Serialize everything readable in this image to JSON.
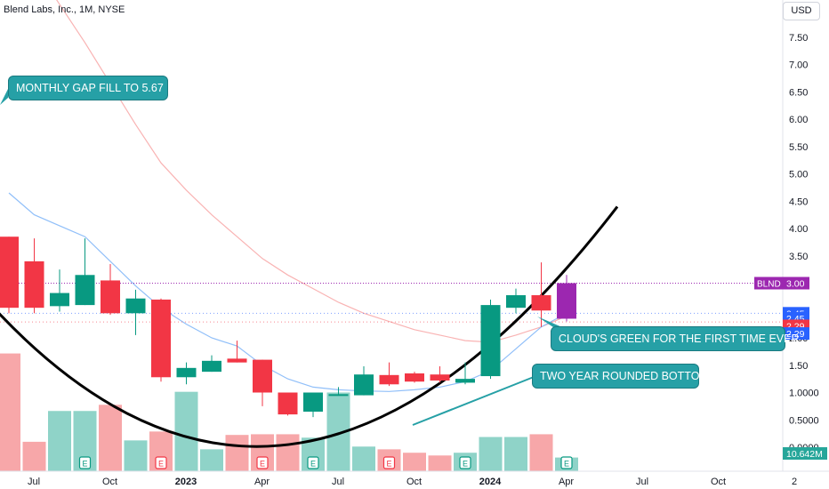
{
  "header": {
    "title": "Blend Labs, Inc., 1M, NYSE",
    "currency_button": "USD"
  },
  "annotations": {
    "gap_fill": "MONTHLY GAP FILL TO 5.67",
    "cloud": "CLOUD'S GREEN FOR THE FIRST TIME EVER",
    "bottom": "TWO YEAR ROUNDED BOTTOM"
  },
  "colors": {
    "up": "#089981",
    "down": "#f23645",
    "current": "#9c27b0",
    "vol_up": "#8fd3c8",
    "vol_down": "#f7a7a9",
    "ema_fast": "#90bff9",
    "ema_slow": "#f9b3b3",
    "curve": "#000000"
  },
  "chart_data": {
    "type": "candlestick",
    "symbol": "BLND",
    "exchange": "NYSE",
    "interval": "1M",
    "ylim": [
      0,
      8
    ],
    "y_ticks": [
      "7.50",
      "7.00",
      "6.50",
      "6.00",
      "5.50",
      "5.00",
      "4.50",
      "4.00",
      "3.50",
      "3.00",
      "2.50",
      "2.00",
      "1.50",
      "1.0000",
      "0.5000",
      "0.0000"
    ],
    "x_ticks": [
      {
        "label": "Jul",
        "month": 0,
        "bold": false
      },
      {
        "label": "Oct",
        "month": 3,
        "bold": false
      },
      {
        "label": "2023",
        "month": 6,
        "bold": true
      },
      {
        "label": "Apr",
        "month": 9,
        "bold": false
      },
      {
        "label": "Jul",
        "month": 12,
        "bold": false
      },
      {
        "label": "Oct",
        "month": 15,
        "bold": false
      },
      {
        "label": "2024",
        "month": 18,
        "bold": true
      },
      {
        "label": "Apr",
        "month": 21,
        "bold": false
      },
      {
        "label": "Jul",
        "month": 24,
        "bold": false
      },
      {
        "label": "Oct",
        "month": 27,
        "bold": false
      },
      {
        "label": "2",
        "month": 30,
        "bold": false
      }
    ],
    "candles": [
      {
        "o": 3.85,
        "h": 3.85,
        "l": 2.45,
        "c": 2.55,
        "vol": 1.72,
        "earnings": false
      },
      {
        "o": 3.4,
        "h": 3.82,
        "l": 2.45,
        "c": 2.55,
        "vol": 0.43,
        "earnings": false
      },
      {
        "o": 2.58,
        "h": 3.25,
        "l": 2.48,
        "c": 2.82,
        "vol": 0.88,
        "earnings": false
      },
      {
        "o": 2.6,
        "h": 3.82,
        "l": 2.6,
        "c": 3.15,
        "vol": 0.88,
        "earnings": true
      },
      {
        "o": 3.05,
        "h": 3.35,
        "l": 2.42,
        "c": 2.45,
        "vol": 0.97,
        "earnings": false
      },
      {
        "o": 2.45,
        "h": 2.88,
        "l": 2.05,
        "c": 2.72,
        "vol": 0.45,
        "earnings": false
      },
      {
        "o": 2.7,
        "h": 2.72,
        "l": 1.2,
        "c": 1.28,
        "vol": 0.58,
        "earnings": true
      },
      {
        "o": 1.28,
        "h": 1.55,
        "l": 1.15,
        "c": 1.45,
        "vol": 1.16,
        "earnings": false
      },
      {
        "o": 1.38,
        "h": 1.68,
        "l": 1.38,
        "c": 1.58,
        "vol": 0.32,
        "earnings": false
      },
      {
        "o": 1.62,
        "h": 1.95,
        "l": 1.55,
        "c": 1.55,
        "vol": 0.53,
        "earnings": false
      },
      {
        "o": 1.6,
        "h": 1.6,
        "l": 0.75,
        "c": 1.0,
        "vol": 0.54,
        "earnings": true
      },
      {
        "o": 1.0,
        "h": 1.0,
        "l": 0.58,
        "c": 0.6,
        "vol": 0.54,
        "earnings": false
      },
      {
        "o": 0.65,
        "h": 1.0,
        "l": 0.55,
        "c": 1.0,
        "vol": 0.49,
        "earnings": true
      },
      {
        "o": 0.95,
        "h": 1.1,
        "l": 0.95,
        "c": 0.97,
        "vol": 1.15,
        "earnings": false
      },
      {
        "o": 0.95,
        "h": 1.48,
        "l": 0.95,
        "c": 1.33,
        "vol": 0.36,
        "earnings": false
      },
      {
        "o": 1.32,
        "h": 1.55,
        "l": 1.12,
        "c": 1.15,
        "vol": 0.32,
        "earnings": true
      },
      {
        "o": 1.35,
        "h": 1.38,
        "l": 1.18,
        "c": 1.2,
        "vol": 0.27,
        "earnings": false
      },
      {
        "o": 1.33,
        "h": 1.48,
        "l": 1.18,
        "c": 1.22,
        "vol": 0.23,
        "earnings": false
      },
      {
        "o": 1.18,
        "h": 1.55,
        "l": 1.15,
        "c": 1.25,
        "vol": 0.27,
        "earnings": true
      },
      {
        "o": 1.3,
        "h": 2.7,
        "l": 1.25,
        "c": 2.6,
        "vol": 0.5,
        "earnings": false
      },
      {
        "o": 2.55,
        "h": 2.9,
        "l": 2.45,
        "c": 2.78,
        "vol": 0.5,
        "earnings": false
      },
      {
        "o": 2.78,
        "h": 3.38,
        "l": 2.2,
        "c": 2.5,
        "vol": 0.54,
        "earnings": false
      },
      {
        "o": 2.35,
        "h": 3.15,
        "l": 2.3,
        "c": 3.0,
        "vol": 0.2,
        "earnings": true,
        "current": true
      }
    ],
    "ema_fast": [
      4.65,
      4.25,
      4.05,
      3.85,
      3.4,
      2.95,
      2.55,
      2.25,
      2.0,
      1.85,
      1.5,
      1.25,
      1.1,
      1.05,
      1.03,
      1.02,
      1.05,
      1.1,
      1.2,
      1.4,
      1.8,
      2.2,
      2.45
    ],
    "ema_slow": [
      9.5,
      8.8,
      8.1,
      7.4,
      6.65,
      5.9,
      5.2,
      4.7,
      4.25,
      3.85,
      3.45,
      3.15,
      2.9,
      2.65,
      2.45,
      2.3,
      2.15,
      2.05,
      1.95,
      1.92,
      2.05,
      2.2,
      2.4
    ],
    "rounded_bottom_curve": [
      {
        "month": -0.5,
        "price": 2.5
      },
      {
        "month": 11.5,
        "price": 0.08
      },
      {
        "month": 24.0,
        "price": 4.4
      }
    ],
    "price_labels": [
      {
        "text": "BLND",
        "value": "3.00",
        "y": 3.0,
        "color": "#9c27b0"
      },
      {
        "text": "",
        "value": "2.45",
        "y": 2.45,
        "color": "#2962ff"
      },
      {
        "text": "",
        "value": "2.45",
        "y": 2.36,
        "color": "#2962ff"
      },
      {
        "text": "",
        "value": "2.29",
        "y": 2.22,
        "color": "#f23645"
      },
      {
        "text": "",
        "value": "2.29",
        "y": 2.08,
        "color": "#2962ff"
      }
    ],
    "volume_label": "10.642M",
    "earnings_marker": "E"
  }
}
